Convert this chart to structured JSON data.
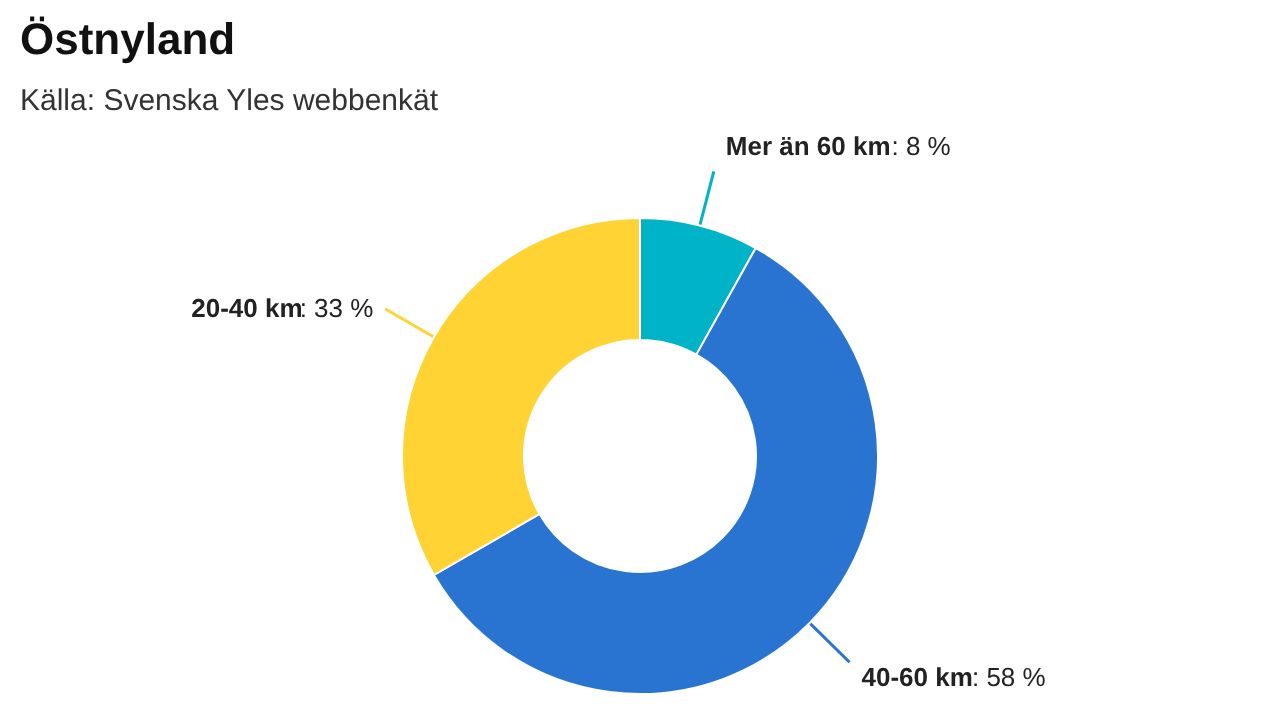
{
  "chart_data": {
    "type": "donut",
    "title": "Östnyland",
    "subtitle": "Källa: Svenska Yles webbenkät",
    "categories": [
      "Mer än 60 km",
      "40-60 km",
      "20-40 km"
    ],
    "values": [
      8,
      58,
      33
    ],
    "value_labels": [
      ": 8 %",
      ": 58 %",
      ": 33 %"
    ],
    "colors": [
      "#00b3c7",
      "#2a74d1",
      "#ffd333"
    ]
  }
}
